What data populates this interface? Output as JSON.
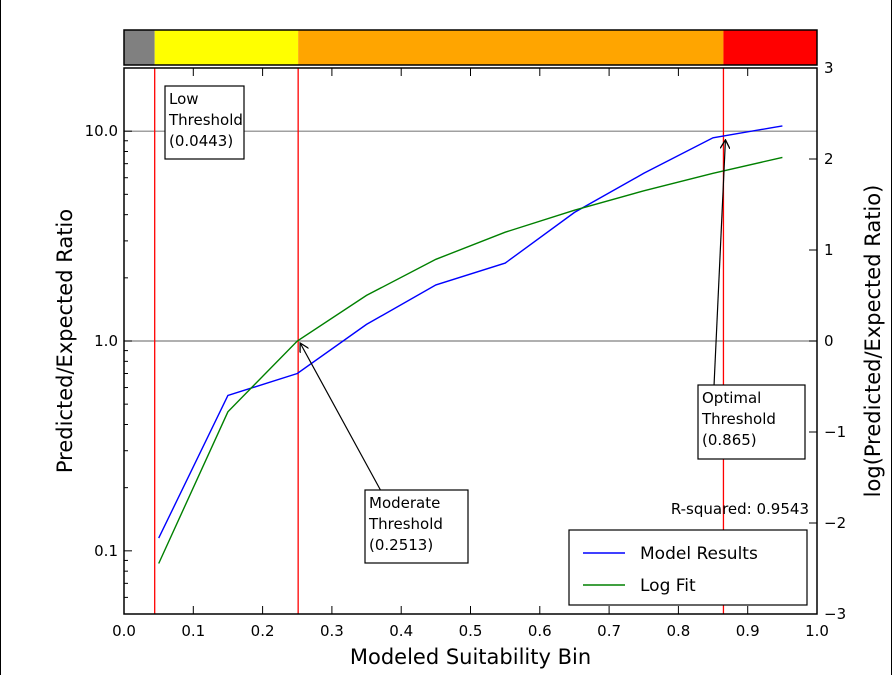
{
  "chart_data": {
    "type": "line",
    "xlabel": "Modeled Suitability Bin",
    "ylabel": "Predicted/Expected Ratio",
    "ylabel_right": "log(Predicted/Expected Ratio)",
    "xlim": [
      0.0,
      1.0
    ],
    "ylim": [
      0.05,
      20
    ],
    "yscale": "log",
    "ylim_right": [
      -3,
      3
    ],
    "xticks": [
      "0.0",
      "0.1",
      "0.2",
      "0.3",
      "0.4",
      "0.5",
      "0.6",
      "0.7",
      "0.8",
      "0.9",
      "1.0"
    ],
    "yticks": [
      {
        "value": 0.1,
        "label": "0.1"
      },
      {
        "value": 1.0,
        "label": "1.0"
      },
      {
        "value": 10.0,
        "label": "10.0"
      }
    ],
    "yticks_right": [
      "−3",
      "−2",
      "−1",
      "0",
      "1",
      "2",
      "3"
    ],
    "hlines": [
      1.0,
      10.0
    ],
    "grid": false,
    "series": [
      {
        "name": "Model Results",
        "color": "#0000ff",
        "x": [
          0.05,
          0.15,
          0.25,
          0.35,
          0.45,
          0.55,
          0.65,
          0.75,
          0.85,
          0.95
        ],
        "y": [
          0.115,
          0.55,
          0.7,
          1.2,
          1.85,
          2.35,
          4.1,
          6.3,
          9.3,
          10.6
        ]
      },
      {
        "name": "Log Fit",
        "color": "#008000",
        "x": [
          0.05,
          0.15,
          0.25,
          0.35,
          0.45,
          0.55,
          0.65,
          0.75,
          0.85,
          0.95
        ],
        "y": [
          0.087,
          0.46,
          1.0,
          1.65,
          2.45,
          3.3,
          4.2,
          5.2,
          6.3,
          7.5
        ]
      }
    ],
    "thresholds": [
      {
        "x": 0.0443,
        "color": "#ff0000"
      },
      {
        "x": 0.2513,
        "color": "#ff0000"
      },
      {
        "x": 0.865,
        "color": "#ff0000"
      }
    ],
    "annotations": [
      {
        "lines": [
          "Low",
          "Threshold",
          "(0.0443)"
        ]
      },
      {
        "lines": [
          "Moderate",
          "Threshold",
          "(0.2513)"
        ],
        "arrow_to": [
          0.2513,
          1.0
        ]
      },
      {
        "lines": [
          "Optimal",
          "Threshold",
          "(0.865)"
        ],
        "arrow_to": [
          0.865,
          9.3
        ]
      }
    ],
    "r_squared_text": "R-squared: 0.9543",
    "legend_position": "lower-right",
    "color_bar": [
      {
        "from": 0.0,
        "to": 0.0443,
        "color": "#808080"
      },
      {
        "from": 0.0443,
        "to": 0.2513,
        "color": "#ffff00"
      },
      {
        "from": 0.2513,
        "to": 0.865,
        "color": "#ffa500"
      },
      {
        "from": 0.865,
        "to": 1.0,
        "color": "#ff0000"
      }
    ]
  }
}
